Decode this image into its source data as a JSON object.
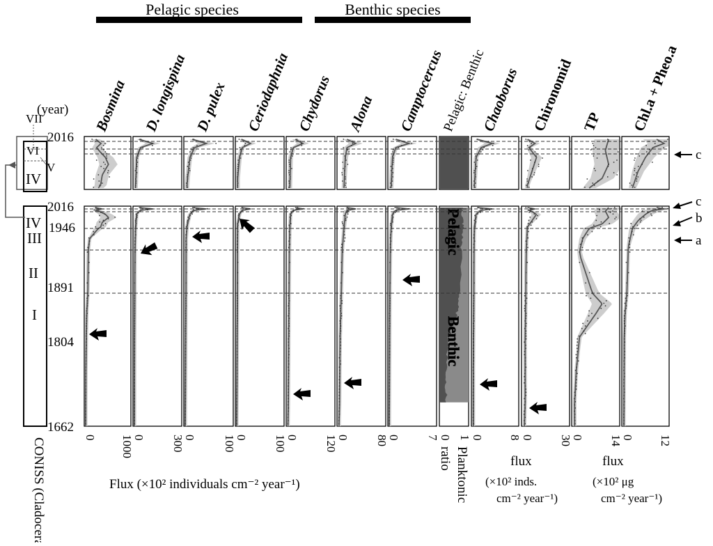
{
  "headers": {
    "pelagic": "Pelagic species",
    "benthic": "Benthic species"
  },
  "year_label": "(year)",
  "coniss": {
    "label": "CONISS (Cladoceran)",
    "zones": [
      "I",
      "II",
      "III",
      "IV",
      "V",
      "VI",
      "VII"
    ]
  },
  "years": {
    "top": "2016",
    "y1946": "1946",
    "y1891": "1891",
    "y1804": "1804",
    "bottom": "1662"
  },
  "right_marks": [
    "c",
    "b",
    "a"
  ],
  "columns": [
    {
      "name": "Bosmina",
      "italic": true,
      "tick_min": "0",
      "tick_max": "1000"
    },
    {
      "name": "D. longispina",
      "italic": true,
      "tick_min": "0",
      "tick_max": "300"
    },
    {
      "name": "D. pulex",
      "italic": true,
      "tick_min": "0",
      "tick_max": "100"
    },
    {
      "name": "Ceriodaphnia",
      "italic": true,
      "tick_min": "0",
      "tick_max": "100"
    },
    {
      "name": "Chydorus",
      "italic": true,
      "tick_min": "0",
      "tick_max": "120"
    },
    {
      "name": "Alona",
      "italic": true,
      "tick_min": "0",
      "tick_max": "80"
    },
    {
      "name": "Camptocercus",
      "italic": true,
      "tick_min": "0",
      "tick_max": "7"
    },
    {
      "name": "Pelagic: Benthic",
      "italic": false,
      "tick_min": "0",
      "tick_max": "1"
    },
    {
      "name": "Chaoborus",
      "italic": true,
      "tick_min": "0",
      "tick_max": "8"
    },
    {
      "name": "Chironomid",
      "italic": false,
      "tick_min": "0",
      "tick_max": "30"
    },
    {
      "name": "TP",
      "italic": false,
      "tick_min": "0",
      "tick_max": "14"
    },
    {
      "name": "Chl.a + Pheo.a",
      "italic": false,
      "tick_min": "0",
      "tick_max": "12"
    }
  ],
  "ratio_labels": {
    "pelagic": "Pelagic",
    "benthic": "Benthic"
  },
  "bottom_labels": {
    "flux_main": "Flux (×10² individuals cm⁻² year⁻¹)",
    "planktonic": "Planktonic",
    "ratio": "ratio",
    "chaob_flux": "flux",
    "chaob_unit1": "(×10² inds.",
    "chaob_unit2": "cm⁻² year⁻¹)",
    "tp_flux": "flux",
    "tp_unit1": "(×10² μg",
    "tp_unit2": "cm⁻² year⁻¹)"
  },
  "colors": {
    "line": "#555555",
    "envelope": "#c4c4c4",
    "ratio_dark": "#505050",
    "ratio_mid": "#8a8a8a"
  },
  "chart_data": {
    "type": "line",
    "y_axis": "year",
    "y_ticks": [
      2016,
      1946,
      1891,
      1804,
      1662
    ],
    "zone_boundaries_years": [
      2006,
      1998,
      1946,
      1912,
      1891
    ],
    "series": [
      {
        "name": "Bosmina",
        "xlim": [
          0,
          1000
        ],
        "points": [
          [
            2016,
            230
          ],
          [
            2010,
            350
          ],
          [
            2004,
            250
          ],
          [
            1998,
            330
          ],
          [
            1990,
            450
          ],
          [
            1980,
            520
          ],
          [
            1965,
            380
          ],
          [
            1950,
            340
          ],
          [
            1930,
            90
          ],
          [
            1910,
            60
          ],
          [
            1891,
            50
          ],
          [
            1850,
            25
          ],
          [
            1804,
            15
          ],
          [
            1750,
            6
          ],
          [
            1700,
            3
          ],
          [
            1662,
            2
          ]
        ]
      },
      {
        "name": "D. longispina",
        "xlim": [
          0,
          300
        ],
        "points": [
          [
            2016,
            30
          ],
          [
            2010,
            120
          ],
          [
            2004,
            40
          ],
          [
            1990,
            15
          ],
          [
            1950,
            8
          ],
          [
            1900,
            3
          ],
          [
            1800,
            1
          ],
          [
            1662,
            0
          ]
        ]
      },
      {
        "name": "D. pulex",
        "xlim": [
          0,
          100
        ],
        "points": [
          [
            2016,
            15
          ],
          [
            2010,
            45
          ],
          [
            2004,
            20
          ],
          [
            1990,
            10
          ],
          [
            1960,
            5
          ],
          [
            1930,
            2
          ],
          [
            1662,
            0
          ]
        ]
      },
      {
        "name": "Ceriodaphnia",
        "xlim": [
          0,
          100
        ],
        "points": [
          [
            2016,
            10
          ],
          [
            2010,
            30
          ],
          [
            2004,
            12
          ],
          [
            1990,
            6
          ],
          [
            1960,
            2
          ],
          [
            1662,
            0
          ]
        ]
      },
      {
        "name": "Chydorus",
        "xlim": [
          0,
          120
        ],
        "points": [
          [
            2016,
            20
          ],
          [
            2010,
            40
          ],
          [
            2004,
            15
          ],
          [
            1990,
            8
          ],
          [
            1950,
            6
          ],
          [
            1891,
            4
          ],
          [
            1804,
            3
          ],
          [
            1700,
            2
          ],
          [
            1662,
            1
          ]
        ]
      },
      {
        "name": "Alona",
        "xlim": [
          0,
          80
        ],
        "points": [
          [
            2016,
            15
          ],
          [
            2010,
            30
          ],
          [
            2004,
            15
          ],
          [
            1990,
            12
          ],
          [
            1950,
            10
          ],
          [
            1891,
            5
          ],
          [
            1804,
            3
          ],
          [
            1700,
            2
          ],
          [
            1662,
            1
          ]
        ]
      },
      {
        "name": "Camptocercus",
        "xlim": [
          0,
          7
        ],
        "points": [
          [
            2016,
            1
          ],
          [
            2010,
            3
          ],
          [
            2004,
            1
          ],
          [
            1990,
            0.5
          ],
          [
            1950,
            0.3
          ],
          [
            1891,
            0.1
          ],
          [
            1662,
            0
          ]
        ]
      },
      {
        "name": "Pelagic: Benthic",
        "xlim": [
          0,
          1
        ],
        "points": [
          [
            2016,
            0.85
          ],
          [
            2000,
            0.8
          ],
          [
            1950,
            0.85
          ],
          [
            1900,
            0.75
          ],
          [
            1850,
            0.6
          ],
          [
            1804,
            0.3
          ],
          [
            1740,
            0.2
          ],
          [
            1700,
            0.2
          ]
        ]
      },
      {
        "name": "Chaoborus",
        "xlim": [
          0,
          8
        ],
        "points": [
          [
            2016,
            0.8
          ],
          [
            2010,
            3.5
          ],
          [
            2004,
            1.5
          ],
          [
            1990,
            0.6
          ],
          [
            1950,
            0.3
          ],
          [
            1900,
            0.2
          ],
          [
            1750,
            0.1
          ],
          [
            1662,
            0.1
          ]
        ]
      },
      {
        "name": "Chironomid",
        "xlim": [
          0,
          30
        ],
        "points": [
          [
            2016,
            3
          ],
          [
            2010,
            8
          ],
          [
            2004,
            4
          ],
          [
            1990,
            9
          ],
          [
            1970,
            6
          ],
          [
            1950,
            3
          ],
          [
            1900,
            2
          ],
          [
            1800,
            1.5
          ],
          [
            1700,
            1.5
          ],
          [
            1662,
            1
          ]
        ]
      },
      {
        "name": "TP",
        "xlim": [
          0,
          14
        ],
        "points": [
          [
            2016,
            11
          ],
          [
            2000,
            10
          ],
          [
            1980,
            11
          ],
          [
            1960,
            9
          ],
          [
            1946,
            5
          ],
          [
            1930,
            3
          ],
          [
            1910,
            2
          ],
          [
            1891,
            6
          ],
          [
            1870,
            9
          ],
          [
            1850,
            7
          ],
          [
            1804,
            2
          ],
          [
            1750,
            1
          ],
          [
            1700,
            0.5
          ],
          [
            1662,
            0.5
          ]
        ]
      },
      {
        "name": "Chl.a + Pheo.a",
        "xlim": [
          0,
          12
        ],
        "points": [
          [
            2016,
            9
          ],
          [
            2010,
            11
          ],
          [
            2004,
            8
          ],
          [
            1990,
            6
          ],
          [
            1970,
            4
          ],
          [
            1946,
            2.5
          ],
          [
            1920,
            1.5
          ],
          [
            1891,
            1
          ],
          [
            1850,
            0.5
          ],
          [
            1804,
            0.3
          ],
          [
            1662,
            0.2
          ]
        ]
      }
    ]
  }
}
